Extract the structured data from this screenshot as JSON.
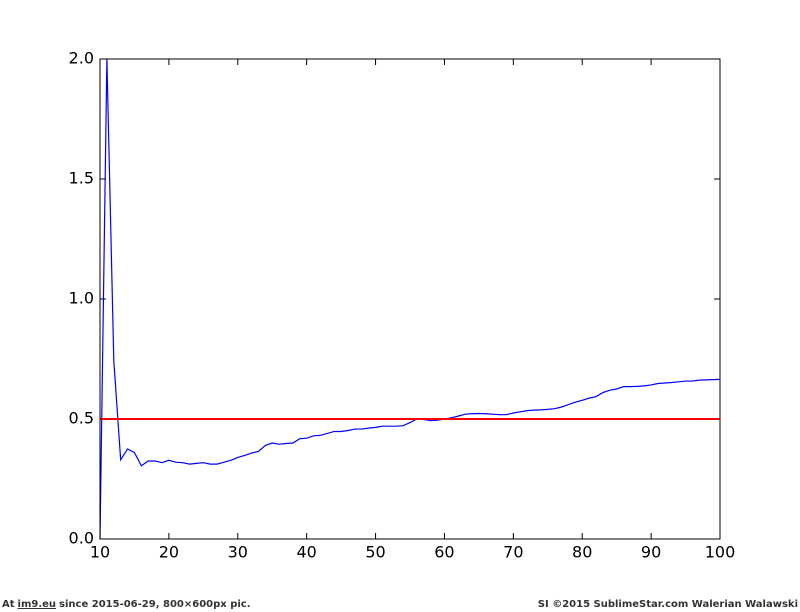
{
  "chart_data": {
    "type": "line",
    "xlim": [
      10,
      100
    ],
    "xticks": [
      10,
      20,
      30,
      40,
      50,
      60,
      70,
      80,
      90,
      100
    ],
    "ylim": [
      0,
      2
    ],
    "yticks": [
      {
        "value": 0,
        "label": "0.0"
      },
      0.5,
      {
        "value": 1,
        "label": "1.0"
      },
      1.5,
      {
        "value": 2,
        "label": "2.0"
      }
    ],
    "grid": false,
    "series": [
      {
        "color": "#0000ff",
        "x": [
          10,
          11,
          12,
          13,
          14,
          15,
          16,
          17,
          18,
          19,
          20,
          21,
          22,
          23,
          24,
          25,
          26,
          27,
          28,
          29,
          30,
          31,
          32,
          33,
          34,
          35,
          36,
          37,
          38,
          39,
          40,
          41,
          42,
          43,
          44,
          45,
          46,
          47,
          48,
          49,
          50,
          51,
          52,
          53,
          54,
          55,
          56,
          57,
          58,
          59,
          60,
          61,
          62,
          63,
          64,
          65,
          66,
          67,
          68,
          69,
          70,
          71,
          72,
          73,
          74,
          75,
          76,
          77,
          78,
          79,
          80,
          81,
          82,
          83,
          84,
          85,
          86,
          87,
          88,
          89,
          90,
          91,
          92,
          93,
          94,
          95,
          96,
          97,
          98,
          99,
          100
        ],
        "values": [
          0.0,
          2.0,
          0.745,
          0.33,
          0.375,
          0.36,
          0.305,
          0.325,
          0.325,
          0.318,
          0.328,
          0.32,
          0.318,
          0.312,
          0.315,
          0.318,
          0.312,
          0.312,
          0.32,
          0.328,
          0.34,
          0.348,
          0.358,
          0.365,
          0.39,
          0.4,
          0.395,
          0.398,
          0.4,
          0.418,
          0.42,
          0.43,
          0.432,
          0.44,
          0.448,
          0.448,
          0.452,
          0.458,
          0.458,
          0.462,
          0.465,
          0.47,
          0.47,
          0.47,
          0.472,
          0.485,
          0.5,
          0.498,
          0.493,
          0.495,
          0.5,
          0.505,
          0.512,
          0.52,
          0.522,
          0.523,
          0.522,
          0.52,
          0.518,
          0.518,
          0.525,
          0.53,
          0.535,
          0.537,
          0.538,
          0.54,
          0.543,
          0.55,
          0.56,
          0.57,
          0.578,
          0.587,
          0.593,
          0.61,
          0.62,
          0.625,
          0.635,
          0.635,
          0.636,
          0.638,
          0.642,
          0.648,
          0.65,
          0.652,
          0.655,
          0.658,
          0.658,
          0.662,
          0.663,
          0.664,
          0.665
        ]
      },
      {
        "color": "#ff0000",
        "x": [
          10,
          100
        ],
        "values": [
          0.5,
          0.5
        ]
      }
    ]
  },
  "footer": {
    "prefix": "At",
    "link": "im9.eu",
    "suffix": "since 2015-06-29, 800×600px pic.",
    "credit": "SI ©2015 SublimeStar.com Walerian Walawski"
  }
}
